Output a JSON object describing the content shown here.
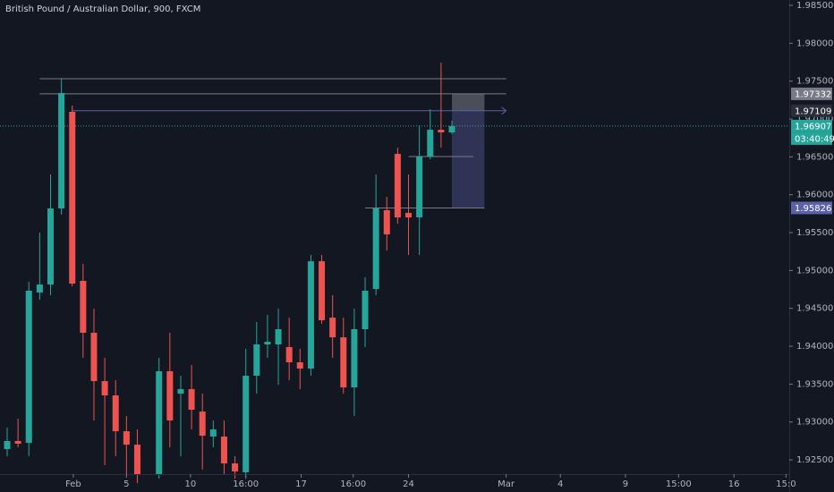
{
  "chart_data": {
    "type": "candlestick",
    "title": "British Pound / Australian Dollar, 900, FXCM",
    "up_color": "#26a69a",
    "down_color": "#ef5350",
    "x": [
      0,
      1,
      2,
      3,
      4,
      5,
      6,
      7,
      8,
      9,
      10,
      11,
      12,
      14,
      15,
      16,
      17,
      18,
      19,
      20,
      21,
      22,
      23,
      24,
      25,
      26,
      27,
      28,
      29,
      30,
      31,
      32,
      33,
      34,
      35,
      36,
      37,
      38,
      39,
      40,
      41
    ],
    "open": [
      1.92642,
      1.92749,
      1.92725,
      1.94709,
      1.94815,
      1.95819,
      1.97095,
      1.94863,
      1.94178,
      1.9354,
      1.93351,
      1.92878,
      1.92701,
      1.92312,
      1.9367,
      1.93374,
      1.93434,
      1.93138,
      1.92808,
      1.92808,
      1.92453,
      1.92335,
      1.93611,
      1.94024,
      1.94024,
      1.93989,
      1.93788,
      1.93705,
      1.95122,
      1.94378,
      1.94118,
      1.93457,
      1.94225,
      1.94756,
      1.95796,
      1.9654,
      1.9576,
      1.95701,
      1.96504,
      1.96858,
      1.96823
    ],
    "high": [
      1.92926,
      1.93044,
      1.94851,
      1.955,
      1.96268,
      1.97532,
      1.97177,
      1.95087,
      1.94496,
      1.93847,
      1.93552,
      1.93079,
      1.92902,
      1.93847,
      1.94178,
      1.93611,
      1.93752,
      1.93374,
      1.9302,
      1.9302,
      1.92548,
      1.93965,
      1.94319,
      1.94414,
      1.94496,
      1.94378,
      1.93965,
      1.95205,
      1.95205,
      1.94674,
      1.94378,
      1.94496,
      1.9491,
      1.96268,
      1.95973,
      1.96622,
      1.96268,
      1.96917,
      1.9713,
      1.97744,
      1.96977
    ],
    "low": [
      1.92548,
      1.92666,
      1.92548,
      1.94615,
      1.94674,
      1.95736,
      1.94792,
      1.93847,
      1.9302,
      1.9243,
      1.92548,
      1.92312,
      1.92193,
      1.92252,
      1.92666,
      1.92548,
      1.92902,
      1.92371,
      1.92666,
      1.92312,
      1.92252,
      1.92252,
      1.93374,
      1.93847,
      1.93493,
      1.93552,
      1.93434,
      1.93611,
      1.94296,
      1.93847,
      1.93374,
      1.93079,
      1.93989,
      1.94674,
      1.95264,
      1.95618,
      1.95205,
      1.95205,
      1.96469,
      1.96622,
      1.96799
    ],
    "close": [
      1.92749,
      1.92713,
      1.94733,
      1.94815,
      1.95819,
      1.97343,
      1.94827,
      1.94178,
      1.9354,
      1.93351,
      1.92878,
      1.92701,
      1.92312,
      1.9367,
      1.9302,
      1.93434,
      1.93162,
      1.92819,
      1.92902,
      1.92453,
      1.92347,
      1.93611,
      1.94024,
      1.9406,
      1.94225,
      1.93788,
      1.93705,
      1.95122,
      1.94343,
      1.94118,
      1.93457,
      1.94225,
      1.94733,
      1.95819,
      1.95477,
      1.95701,
      1.95701,
      1.96504,
      1.96858,
      1.96823,
      1.96907
    ],
    "xlim": [
      -0.66,
      72.1
    ],
    "ylim": [
      1.92312,
      1.98571
    ],
    "xticks": [
      {
        "value": 6.1,
        "label": "Feb"
      },
      {
        "value": 11.0,
        "label": "5"
      },
      {
        "value": 16.9,
        "label": "10"
      },
      {
        "value": 22.0,
        "label": "16:00"
      },
      {
        "value": 27.1,
        "label": "17"
      },
      {
        "value": 31.9,
        "label": "16:00"
      },
      {
        "value": 37.0,
        "label": "24"
      },
      {
        "value": 46.0,
        "label": "Mar"
      },
      {
        "value": 51.0,
        "label": "4"
      },
      {
        "value": 57.0,
        "label": "9"
      },
      {
        "value": 61.9,
        "label": "15:00"
      },
      {
        "value": 67.0,
        "label": "16"
      },
      {
        "value": 71.8,
        "label": "15:0"
      }
    ],
    "yticks": [
      {
        "value": 1.985,
        "label": "1.98500"
      },
      {
        "value": 1.98,
        "label": "1.98000"
      },
      {
        "value": 1.975,
        "label": "1.97500"
      },
      {
        "value": 1.97,
        "label": "1.97000"
      },
      {
        "value": 1.965,
        "label": "1.96500"
      },
      {
        "value": 1.96,
        "label": "1.96000"
      },
      {
        "value": 1.955,
        "label": "1.95500"
      },
      {
        "value": 1.95,
        "label": "1.95000"
      },
      {
        "value": 1.945,
        "label": "1.94500"
      },
      {
        "value": 1.94,
        "label": "1.94000"
      },
      {
        "value": 1.935,
        "label": "1.93500"
      },
      {
        "value": 1.93,
        "label": "1.93000"
      },
      {
        "value": 1.925,
        "label": "1.92500"
      }
    ],
    "hlines": [
      {
        "value": 1.97532,
        "from": 3,
        "to": 46
      },
      {
        "value": 1.97332,
        "from": 3,
        "to": 46
      },
      {
        "value": 1.96504,
        "from": 37,
        "to": 43
      }
    ],
    "arrow_line": {
      "value": 1.97109,
      "from": 6,
      "to": 46
    },
    "position_box": {
      "from": 41,
      "to": 44,
      "top": 1.97332,
      "entry": 1.97109,
      "bottom": 1.95826
    },
    "price_labels": [
      {
        "value": 1.97332,
        "label": "1.97332",
        "color": "#787b86"
      },
      {
        "value": 1.97109,
        "label": "1.97109",
        "color": "#2a2e39"
      },
      {
        "value": 1.95826,
        "label": "1.95826",
        "color": "#5b62a5"
      }
    ],
    "last_price": {
      "value": 1.96907,
      "label": "1.96907",
      "color": "#26a69a"
    },
    "countdown": "03:40:49"
  }
}
